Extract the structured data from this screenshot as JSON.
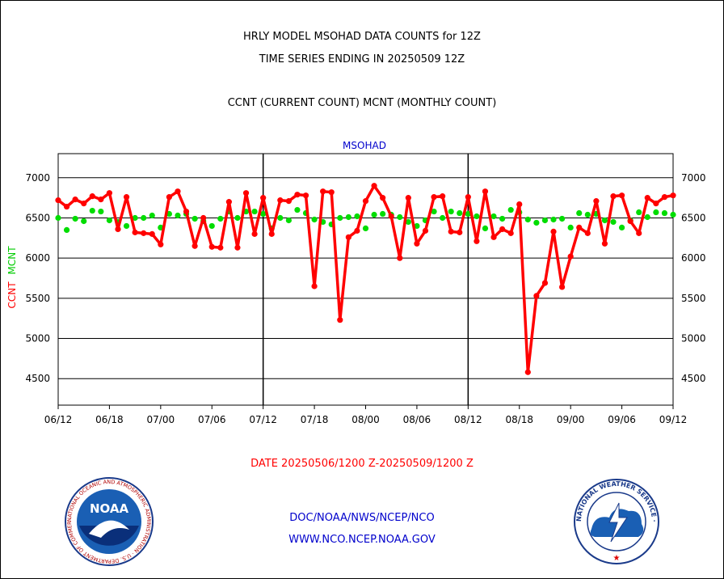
{
  "header": {
    "line1": "HRLY MODEL MSOHAD DATA COUNTS for 12Z",
    "line2": "TIME SERIES ENDING IN 20250509 12Z",
    "line3": "CCNT (CURRENT COUNT) MCNT (MONTHLY COUNT)"
  },
  "footer": {
    "date_range": "DATE 20250506/1200 Z-20250509/1200 Z",
    "org": "DOC/NOAA/NWS/NCEP/NCO",
    "url": "WWW.NCO.NCEP.NOAA.GOV"
  },
  "logos": {
    "noaa_text": "NOAA",
    "noaa_ring": "NATIONAL OCEANIC AND ATMOSPHERIC ADMINISTRATION · U.S. DEPARTMENT OF COMMERCE ·",
    "nws_ring": "NATIONAL WEATHER SERVICE ·"
  },
  "colors": {
    "ccnt": "#ff0000",
    "mcnt": "#00dd00",
    "title": "#0000cc",
    "text": "#000000"
  },
  "chart_data": {
    "type": "line",
    "title": "MSOHAD",
    "ylabel_left_1": "CCNT",
    "ylabel_left_2": "MCNT",
    "ylim": [
      4170,
      7300
    ],
    "yticks": [
      4500,
      5000,
      5500,
      6000,
      6500,
      7000
    ],
    "x_tick_labels": [
      "06/12",
      "06/18",
      "07/00",
      "07/06",
      "07/12",
      "07/18",
      "08/00",
      "08/06",
      "08/12",
      "08/18",
      "09/00",
      "09/06",
      "09/12"
    ],
    "x_range_hours": [
      0,
      72
    ],
    "series": [
      {
        "name": "CCNT",
        "color": "#ff0000",
        "values": [
          6720,
          6640,
          6730,
          6680,
          6770,
          6730,
          6810,
          6360,
          6760,
          6320,
          6310,
          6300,
          6170,
          6760,
          6830,
          6580,
          6150,
          6500,
          6140,
          6130,
          6700,
          6130,
          6810,
          6300,
          6750,
          6300,
          6720,
          6710,
          6790,
          6780,
          5650,
          6830,
          6820,
          5230,
          6260,
          6340,
          6710,
          6900,
          6750,
          6520,
          6000,
          6750,
          6180,
          6340,
          6760,
          6770,
          6330,
          6320,
          6760,
          6210,
          6830,
          6260,
          6360,
          6310,
          6670,
          4580,
          5530,
          5690,
          6330,
          5640,
          6020,
          6380,
          6310,
          6710,
          6180,
          6770,
          6780,
          6460,
          6310,
          6750,
          6680,
          6760,
          6780
        ]
      },
      {
        "name": "MCNT",
        "color": "#00dd00",
        "values": [
          6500,
          6350,
          6490,
          6460,
          6590,
          6580,
          6470,
          6450,
          6400,
          6500,
          6500,
          6530,
          6380,
          6550,
          6530,
          6550,
          6490,
          6460,
          6400,
          6490,
          6580,
          6500,
          6580,
          6580,
          6550,
          6370,
          6500,
          6470,
          6600,
          6560,
          6480,
          6450,
          6420,
          6500,
          6510,
          6520,
          6370,
          6540,
          6550,
          6540,
          6510,
          6450,
          6400,
          6470,
          6580,
          6500,
          6580,
          6560,
          6550,
          6520,
          6370,
          6520,
          6490,
          6600,
          6570,
          6480,
          6440,
          6470,
          6480,
          6490,
          6380,
          6560,
          6540,
          6550,
          6470,
          6450,
          6380,
          6470,
          6570,
          6510,
          6570,
          6560,
          6540
        ]
      }
    ],
    "grid": true
  }
}
